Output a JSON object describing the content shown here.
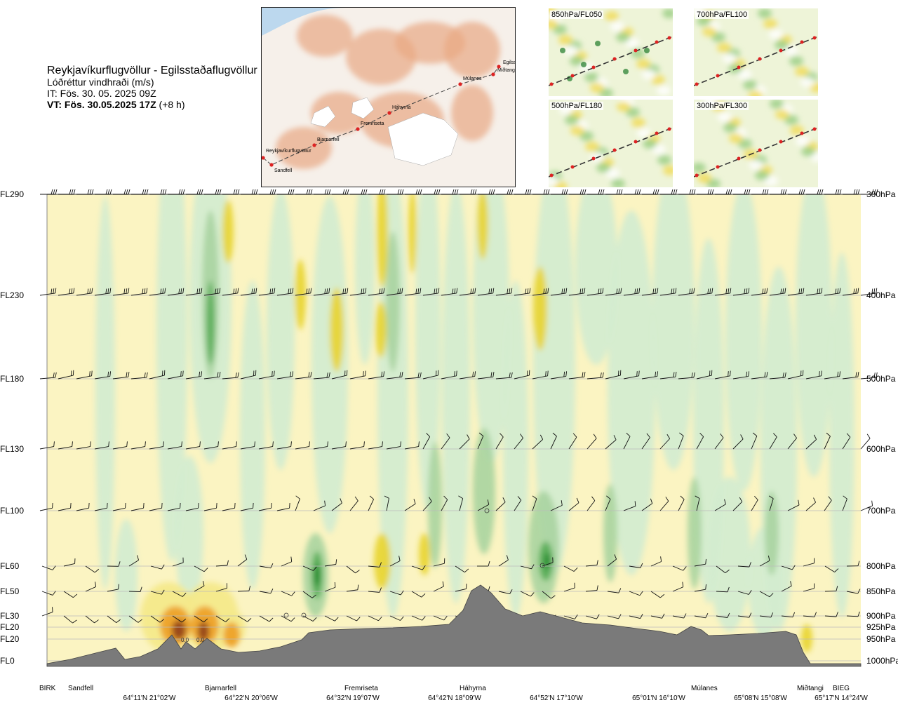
{
  "header": {
    "route": "Reykjavíkurflugvöllur - Egilsstaðaflugvöllur",
    "field": "Lóðréttur vindhraði (m/s)",
    "issue": "IT: Fös. 30. 05. 2025 09Z",
    "valid_bold": "VT: Fös. 30.05.2025 17Z",
    "valid_offset": "(+8 h)"
  },
  "map": {
    "waypoints": [
      {
        "name": "Reykjavíkurflugvöllur"
      },
      {
        "name": "Sandfell"
      },
      {
        "name": "Bjarnarfell"
      },
      {
        "name": "Fremriseta"
      },
      {
        "name": "Háhyrna"
      },
      {
        "name": "Múlanes"
      },
      {
        "name": "Miðtangi"
      },
      {
        "name": "Egilss"
      }
    ]
  },
  "minimaps": [
    {
      "label": "850hPa/FL050"
    },
    {
      "label": "700hPa/FL100"
    },
    {
      "label": "500hPa/FL180"
    },
    {
      "label": "300hPa/FL300"
    }
  ],
  "chart_data": {
    "type": "heatmap",
    "title": "Lóðréttur vindhraði (m/s)",
    "levels": [
      {
        "fl": "FL290",
        "hpa": "300hPa"
      },
      {
        "fl": "FL230",
        "hpa": "400hPa"
      },
      {
        "fl": "FL180",
        "hpa": "500hPa"
      },
      {
        "fl": "FL130",
        "hpa": "600hPa"
      },
      {
        "fl": "FL100",
        "hpa": "700hPa"
      },
      {
        "fl": "FL60",
        "hpa": "800hPa"
      },
      {
        "fl": "FL50",
        "hpa": "850hPa"
      },
      {
        "fl": "FL30",
        "hpa": "900hPa"
      },
      {
        "fl": "FL20",
        "hpa": "925hPa"
      },
      {
        "fl": "FL20",
        "hpa": "950hPa"
      },
      {
        "fl": "FL0",
        "hpa": "1000hPa"
      }
    ],
    "waypoints": [
      "BIRK",
      "Sandfell",
      "Bjarnarfell",
      "Fremriseta",
      "Háhyrna",
      "Múlanes",
      "Miðtangi",
      "BIEG"
    ],
    "coordinates": [
      "64°11'N 21°02'W",
      "64°22'N 20°06'W",
      "64°32'N 19°07'W",
      "64°42'N 18°09'W",
      "64°52'N 17°10'W",
      "65°01'N 16°10'W",
      "65°08'N 15°08'W",
      "65°17'N 14°24'W"
    ],
    "terrain_labels": [
      "0.0",
      "0.0"
    ],
    "colors": {
      "up_light": "#fbf4c2",
      "up_mid": "#f4e98a",
      "up_strong": "#e8d42c",
      "up_orange": "#eea62e",
      "up_dark": "#9a4a1c",
      "down_light": "#d4ecd0",
      "down_mid": "#a8d4a0",
      "down_strong": "#5aae5a",
      "down_dark": "#1e8a2a",
      "terrain": "#7a7a7a"
    }
  }
}
